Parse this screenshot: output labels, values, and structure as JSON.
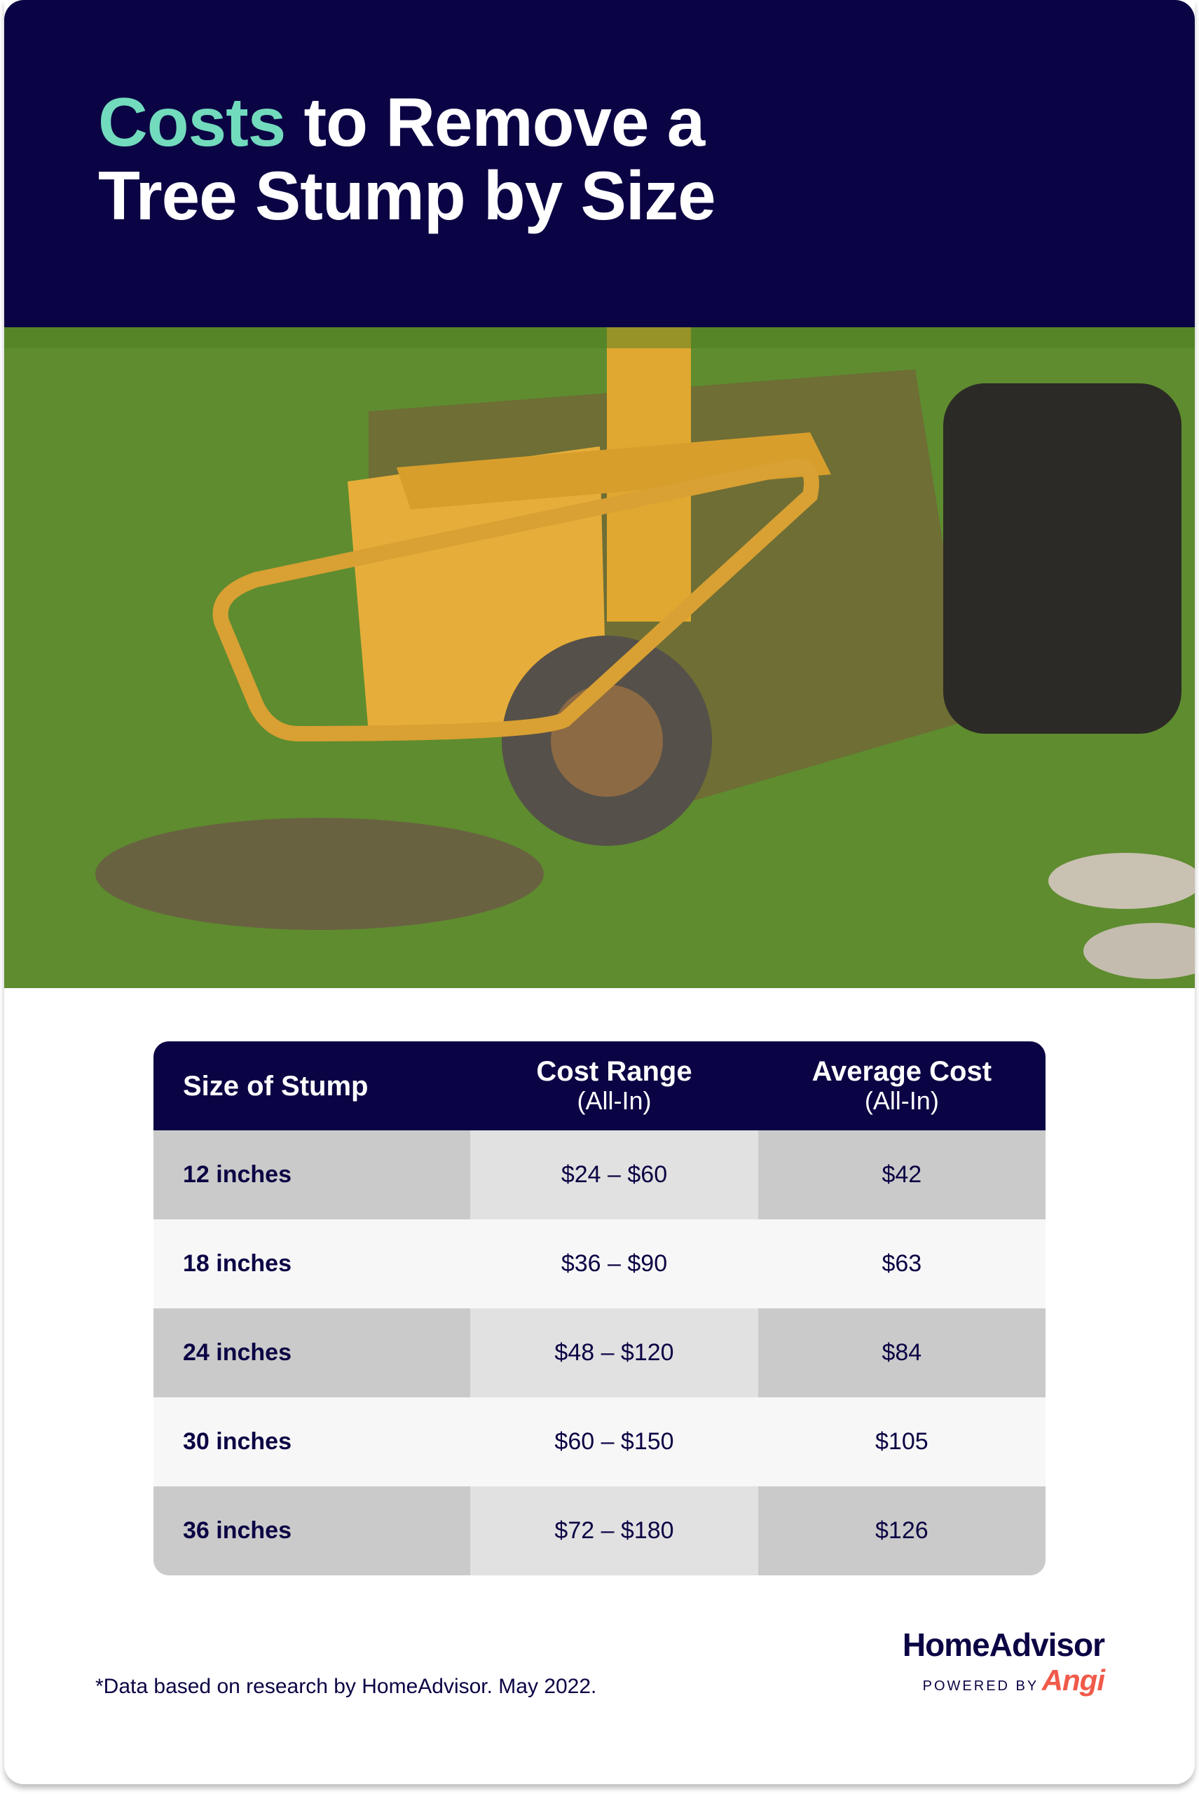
{
  "title": {
    "accent": "Costs",
    "rest_line1": " to Remove a",
    "line2": "Tree Stump by Size"
  },
  "colors": {
    "navy": "#0b0444",
    "accent": "#72dbbd",
    "angi": "#f05a4a"
  },
  "image": {
    "subject": "stump-grinder-photo"
  },
  "table": {
    "headers": [
      {
        "label": "Size of Stump",
        "sub": ""
      },
      {
        "label": "Cost Range",
        "sub": "(All-In)"
      },
      {
        "label": "Average Cost",
        "sub": "(All-In)"
      }
    ],
    "rows": [
      [
        "12 inches",
        "$24 – $60",
        "$42"
      ],
      [
        "18 inches",
        "$36 – $90",
        "$63"
      ],
      [
        "24 inches",
        "$48 – $120",
        "$84"
      ],
      [
        "30 inches",
        "$60 – $150",
        "$105"
      ],
      [
        "36 inches",
        "$72 – $180",
        "$126"
      ]
    ]
  },
  "footnote": "*Data based on research by HomeAdvisor. May 2022.",
  "logo": {
    "brand": "HomeAdvisor",
    "powered_by": "POWERED BY",
    "parent": "Angi"
  }
}
